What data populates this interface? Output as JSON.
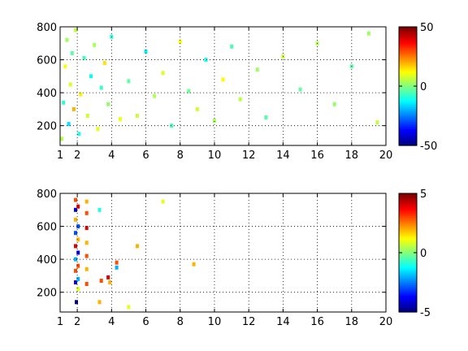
{
  "chart_data": [
    {
      "type": "heatmap",
      "title": "",
      "xlabel": "",
      "ylabel": "",
      "xlim": [
        1,
        20
      ],
      "ylim": [
        80,
        800
      ],
      "xticks": [
        1,
        2,
        4,
        6,
        8,
        10,
        12,
        14,
        16,
        18,
        20
      ],
      "xtick_labels": [
        "1",
        "2",
        "4",
        "6",
        "8",
        "10",
        "12",
        "14",
        "16",
        "18",
        "20"
      ],
      "yticks": [
        200,
        400,
        600,
        800
      ],
      "ytick_labels": [
        "200",
        "400",
        "600",
        "800"
      ],
      "grid": true,
      "colormap": "jet",
      "colorbar": {
        "range": [
          -50,
          50
        ],
        "ticks": [
          -50,
          0,
          50
        ],
        "tick_labels": [
          "-50",
          "0",
          "50"
        ]
      },
      "description_of_values": "dense scattered cells concentrated at x 1-12, values mostly near 0 (cyan-yellow), occasional +/-20",
      "values": [
        [
          1.1,
          120,
          5
        ],
        [
          1.2,
          340,
          -8
        ],
        [
          1.3,
          560,
          12
        ],
        [
          1.4,
          720,
          3
        ],
        [
          1.5,
          210,
          -15
        ],
        [
          1.6,
          450,
          9
        ],
        [
          1.7,
          640,
          -4
        ],
        [
          1.8,
          300,
          20
        ],
        [
          1.9,
          780,
          6
        ],
        [
          2.1,
          150,
          -10
        ],
        [
          2.2,
          390,
          14
        ],
        [
          2.4,
          610,
          -6
        ],
        [
          2.6,
          260,
          8
        ],
        [
          2.8,
          500,
          -12
        ],
        [
          3.0,
          690,
          4
        ],
        [
          3.2,
          180,
          10
        ],
        [
          3.4,
          430,
          -7
        ],
        [
          3.6,
          580,
          15
        ],
        [
          3.8,
          330,
          2
        ],
        [
          4.0,
          740,
          -9
        ],
        [
          4.5,
          240,
          11
        ],
        [
          5.0,
          470,
          -3
        ],
        [
          5.5,
          260,
          7
        ],
        [
          6.0,
          650,
          -14
        ],
        [
          6.5,
          380,
          5
        ],
        [
          7.0,
          520,
          9
        ],
        [
          7.5,
          200,
          -6
        ],
        [
          8.0,
          710,
          12
        ],
        [
          8.5,
          410,
          -2
        ],
        [
          9.0,
          300,
          8
        ],
        [
          9.5,
          600,
          -11
        ],
        [
          10.0,
          230,
          4
        ],
        [
          10.5,
          480,
          13
        ],
        [
          11.0,
          680,
          -5
        ],
        [
          11.5,
          360,
          6
        ],
        [
          12.5,
          540,
          3
        ],
        [
          13.0,
          250,
          -4
        ],
        [
          14.0,
          620,
          7
        ],
        [
          15.0,
          420,
          -3
        ],
        [
          16.0,
          700,
          5
        ],
        [
          17.0,
          330,
          2
        ],
        [
          18.0,
          560,
          -4
        ],
        [
          19.0,
          760,
          3
        ],
        [
          19.5,
          220,
          6
        ]
      ]
    },
    {
      "type": "heatmap",
      "title": "",
      "xlabel": "",
      "ylabel": "",
      "xlim": [
        1,
        20
      ],
      "ylim": [
        80,
        800
      ],
      "xticks": [
        1,
        2,
        4,
        6,
        8,
        10,
        12,
        14,
        16,
        18,
        20
      ],
      "xtick_labels": [
        "1",
        "2",
        "4",
        "6",
        "8",
        "10",
        "12",
        "14",
        "16",
        "18",
        "20"
      ],
      "yticks": [
        200,
        400,
        600,
        800
      ],
      "ytick_labels": [
        "200",
        "400",
        "600",
        "800"
      ],
      "grid": true,
      "colormap": "jet",
      "colorbar": {
        "range": [
          -5,
          5
        ],
        "ticks": [
          -5,
          0,
          5
        ],
        "tick_labels": [
          "-5",
          "0",
          "5"
        ]
      },
      "description_of_values": "sparse cells, mostly columns near x=2 and x=2.5, a few points near x 3-9",
      "values": [
        [
          1.9,
          760,
          3
        ],
        [
          1.9,
          700,
          -4
        ],
        [
          1.9,
          640,
          2
        ],
        [
          1.9,
          560,
          -3
        ],
        [
          1.9,
          480,
          4
        ],
        [
          1.9,
          400,
          -2
        ],
        [
          1.9,
          330,
          3
        ],
        [
          1.9,
          260,
          -4
        ],
        [
          2.05,
          720,
          4
        ],
        [
          2.05,
          600,
          -3
        ],
        [
          2.05,
          520,
          2
        ],
        [
          2.05,
          440,
          -4
        ],
        [
          2.05,
          360,
          3
        ],
        [
          2.05,
          280,
          -2
        ],
        [
          2.05,
          220,
          1
        ],
        [
          2.55,
          750,
          2
        ],
        [
          2.55,
          680,
          3
        ],
        [
          2.55,
          590,
          4
        ],
        [
          2.55,
          500,
          2
        ],
        [
          2.55,
          420,
          3
        ],
        [
          2.55,
          340,
          2
        ],
        [
          2.55,
          250,
          3
        ],
        [
          1.95,
          140,
          -5
        ],
        [
          3.3,
          140,
          2
        ],
        [
          3.3,
          700,
          -1
        ],
        [
          3.4,
          270,
          3
        ],
        [
          3.8,
          290,
          4
        ],
        [
          3.9,
          260,
          2
        ],
        [
          4.3,
          380,
          3
        ],
        [
          4.3,
          350,
          -2
        ],
        [
          5.0,
          110,
          1
        ],
        [
          5.5,
          480,
          2
        ],
        [
          7.0,
          750,
          1
        ],
        [
          8.8,
          370,
          2
        ]
      ]
    }
  ]
}
